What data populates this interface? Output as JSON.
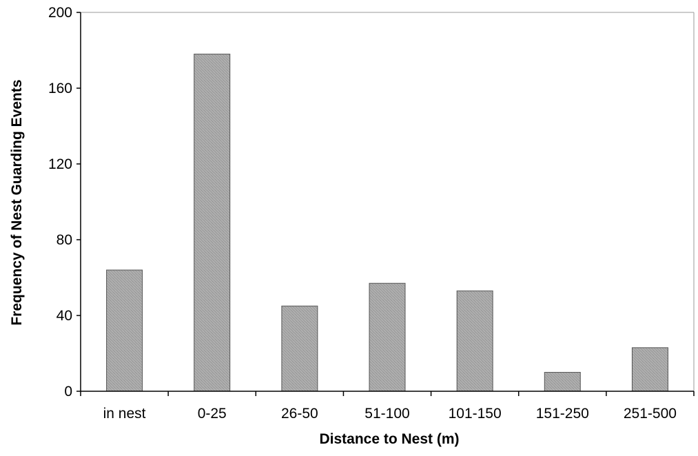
{
  "chart_data": {
    "type": "bar",
    "title": "",
    "xlabel": "Distance to Nest (m)",
    "ylabel": "Frequency of Nest Guarding Events",
    "categories": [
      "in nest",
      "0-25",
      "26-50",
      "51-100",
      "101-150",
      "151-250",
      "251-500"
    ],
    "values": [
      64,
      178,
      45,
      57,
      53,
      10,
      23
    ],
    "ylim": [
      0,
      200
    ],
    "yticks": [
      0,
      40,
      80,
      120,
      160,
      200
    ],
    "grid": false,
    "legend": "none",
    "colors": {
      "bar_fill": "#a4a4a4",
      "bar_stroke": "#555555",
      "axis": "#000000"
    }
  }
}
